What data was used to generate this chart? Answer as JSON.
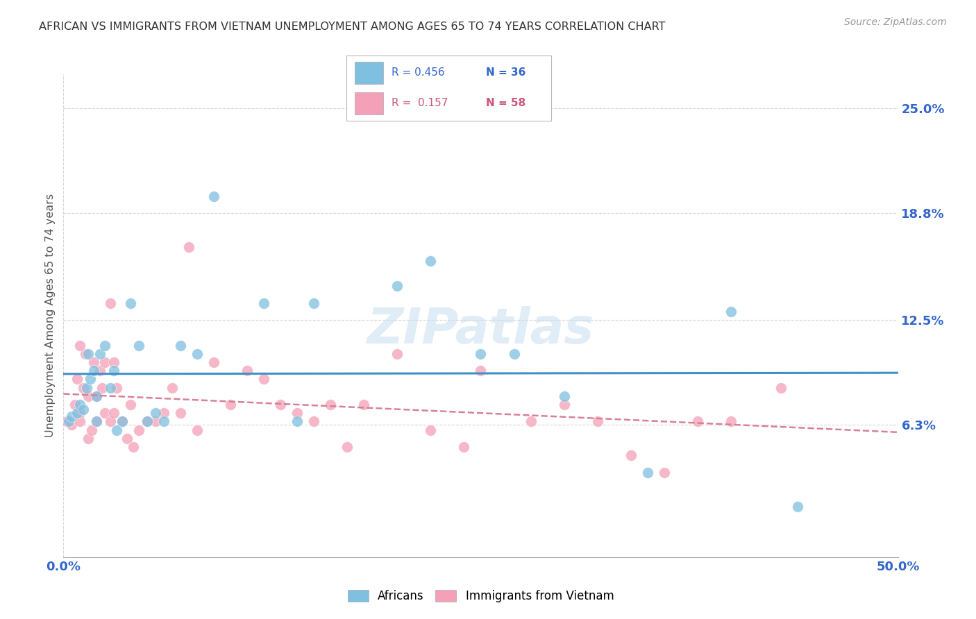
{
  "title": "AFRICAN VS IMMIGRANTS FROM VIETNAM UNEMPLOYMENT AMONG AGES 65 TO 74 YEARS CORRELATION CHART",
  "source": "Source: ZipAtlas.com",
  "ylabel": "Unemployment Among Ages 65 to 74 years",
  "ytick_vals": [
    6.3,
    12.5,
    18.8,
    25.0
  ],
  "xlim": [
    0.0,
    50.0
  ],
  "ylim": [
    -1.5,
    27.0
  ],
  "africans_color": "#7fbfdf",
  "vietnam_color": "#f4a0b8",
  "trendline_african_color": "#4090c8",
  "trendline_vietnam_color": "#d88098",
  "legend_color1": "#7fbfdf",
  "legend_color2": "#f4a0b8",
  "africans_x": [
    0.3,
    0.5,
    0.8,
    1.0,
    1.2,
    1.4,
    1.5,
    1.6,
    1.8,
    2.0,
    2.2,
    2.5,
    2.8,
    3.0,
    3.5,
    4.0,
    4.5,
    5.5,
    6.0,
    7.0,
    8.0,
    9.0,
    12.0,
    14.0,
    15.0,
    20.0,
    22.0,
    25.0,
    30.0,
    35.0,
    40.0,
    44.0,
    2.0,
    3.2,
    5.0,
    27.0
  ],
  "africans_y": [
    6.5,
    6.8,
    7.0,
    7.5,
    7.2,
    8.5,
    10.5,
    9.0,
    9.5,
    8.0,
    10.5,
    11.0,
    8.5,
    9.5,
    6.5,
    13.5,
    11.0,
    7.0,
    6.5,
    11.0,
    10.5,
    19.8,
    13.5,
    6.5,
    13.5,
    14.5,
    16.0,
    10.5,
    8.0,
    3.5,
    13.0,
    1.5,
    6.5,
    6.0,
    6.5,
    10.5
  ],
  "vietnam_x": [
    0.2,
    0.5,
    0.7,
    0.8,
    1.0,
    1.0,
    1.2,
    1.3,
    1.5,
    1.5,
    1.7,
    1.8,
    2.0,
    2.0,
    2.2,
    2.3,
    2.5,
    2.5,
    2.8,
    3.0,
    3.0,
    3.2,
    3.5,
    3.8,
    4.0,
    4.5,
    5.0,
    5.5,
    6.0,
    6.5,
    7.0,
    7.5,
    8.0,
    9.0,
    10.0,
    11.0,
    12.0,
    13.0,
    14.0,
    15.0,
    16.0,
    18.0,
    20.0,
    22.0,
    24.0,
    25.0,
    28.0,
    30.0,
    32.0,
    34.0,
    36.0,
    38.0,
    40.0,
    43.0,
    1.0,
    2.8,
    4.2,
    17.0
  ],
  "vietnam_y": [
    6.5,
    6.3,
    7.5,
    9.0,
    6.5,
    7.0,
    8.5,
    10.5,
    8.0,
    5.5,
    6.0,
    10.0,
    6.5,
    8.0,
    9.5,
    8.5,
    7.0,
    10.0,
    6.5,
    7.0,
    10.0,
    8.5,
    6.5,
    5.5,
    7.5,
    6.0,
    6.5,
    6.5,
    7.0,
    8.5,
    7.0,
    16.8,
    6.0,
    10.0,
    7.5,
    9.5,
    9.0,
    7.5,
    7.0,
    6.5,
    7.5,
    7.5,
    10.5,
    6.0,
    5.0,
    9.5,
    6.5,
    7.5,
    6.5,
    4.5,
    3.5,
    6.5,
    6.5,
    8.5,
    11.0,
    13.5,
    5.0,
    5.0
  ]
}
